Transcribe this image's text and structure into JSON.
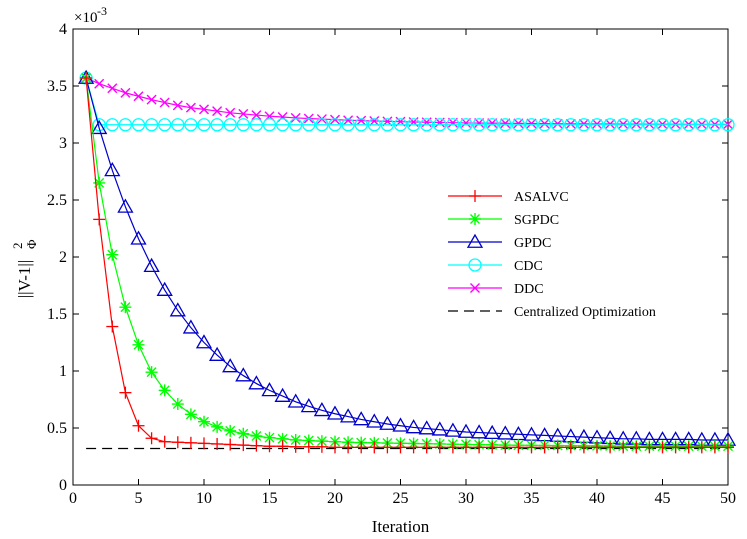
{
  "chart_data": {
    "type": "line",
    "title": "",
    "xlabel": "Iteration",
    "ylabel_main": "||V-1||",
    "ylabel_sup": "2",
    "ylabel_sub": "Φ",
    "y_exponent_label_base": "×10",
    "y_exponent_label_power": "-3",
    "xlim": [
      0,
      50
    ],
    "ylim": [
      0,
      4
    ],
    "xticks": [
      0,
      5,
      10,
      15,
      20,
      25,
      30,
      35,
      40,
      45,
      50
    ],
    "yticks": [
      0,
      0.5,
      1,
      1.5,
      2,
      2.5,
      3,
      3.5,
      4
    ],
    "grid": false,
    "legend_position": "center-right",
    "x": [
      1,
      2,
      3,
      4,
      5,
      6,
      7,
      8,
      9,
      10,
      11,
      12,
      13,
      14,
      15,
      16,
      17,
      18,
      19,
      20,
      21,
      22,
      23,
      24,
      25,
      26,
      27,
      28,
      29,
      30,
      31,
      32,
      33,
      34,
      35,
      36,
      37,
      38,
      39,
      40,
      41,
      42,
      43,
      44,
      45,
      46,
      47,
      48,
      49,
      50
    ],
    "series": [
      {
        "name": "ASALVC",
        "color": "#ff0000",
        "marker": "plus",
        "values": [
          3.57,
          2.33,
          1.39,
          0.81,
          0.52,
          0.41,
          0.38,
          0.375,
          0.37,
          0.365,
          0.36,
          0.355,
          0.35,
          0.345,
          0.34,
          0.34,
          0.335,
          0.335,
          0.335,
          0.33,
          0.33,
          0.33,
          0.33,
          0.33,
          0.33,
          0.33,
          0.33,
          0.33,
          0.33,
          0.33,
          0.33,
          0.33,
          0.33,
          0.33,
          0.33,
          0.33,
          0.33,
          0.33,
          0.33,
          0.33,
          0.33,
          0.33,
          0.33,
          0.33,
          0.33,
          0.33,
          0.33,
          0.33,
          0.33,
          0.33
        ]
      },
      {
        "name": "SGPDC",
        "color": "#00ff00",
        "marker": "star",
        "values": [
          3.57,
          2.65,
          2.02,
          1.56,
          1.23,
          0.99,
          0.83,
          0.71,
          0.62,
          0.555,
          0.51,
          0.475,
          0.45,
          0.43,
          0.415,
          0.405,
          0.395,
          0.39,
          0.385,
          0.38,
          0.375,
          0.372,
          0.37,
          0.368,
          0.366,
          0.364,
          0.362,
          0.36,
          0.358,
          0.356,
          0.354,
          0.352,
          0.35,
          0.349,
          0.348,
          0.347,
          0.346,
          0.345,
          0.344,
          0.343,
          0.342,
          0.341,
          0.34,
          0.34,
          0.34,
          0.34,
          0.34,
          0.34,
          0.34,
          0.34
        ]
      },
      {
        "name": "GPDC",
        "color": "#0000cc",
        "marker": "triangle",
        "values": [
          3.57,
          3.13,
          2.76,
          2.44,
          2.16,
          1.92,
          1.71,
          1.53,
          1.38,
          1.25,
          1.14,
          1.04,
          0.96,
          0.89,
          0.83,
          0.78,
          0.73,
          0.69,
          0.655,
          0.625,
          0.6,
          0.575,
          0.555,
          0.535,
          0.52,
          0.505,
          0.495,
          0.485,
          0.475,
          0.465,
          0.46,
          0.455,
          0.45,
          0.445,
          0.44,
          0.435,
          0.43,
          0.425,
          0.42,
          0.415,
          0.41,
          0.405,
          0.405,
          0.4,
          0.4,
          0.4,
          0.4,
          0.395,
          0.395,
          0.395
        ]
      },
      {
        "name": "CDC",
        "color": "#00ffff",
        "marker": "circle",
        "values": [
          3.57,
          3.16,
          3.16,
          3.16,
          3.16,
          3.16,
          3.16,
          3.16,
          3.16,
          3.16,
          3.16,
          3.16,
          3.16,
          3.16,
          3.16,
          3.16,
          3.16,
          3.16,
          3.16,
          3.16,
          3.16,
          3.16,
          3.16,
          3.16,
          3.16,
          3.16,
          3.16,
          3.16,
          3.16,
          3.16,
          3.16,
          3.16,
          3.16,
          3.16,
          3.16,
          3.16,
          3.16,
          3.16,
          3.16,
          3.16,
          3.16,
          3.16,
          3.16,
          3.16,
          3.16,
          3.16,
          3.16,
          3.16,
          3.16,
          3.16
        ]
      },
      {
        "name": "DDC",
        "color": "#ff00ff",
        "marker": "x",
        "values": [
          3.57,
          3.52,
          3.48,
          3.44,
          3.41,
          3.38,
          3.355,
          3.33,
          3.31,
          3.295,
          3.28,
          3.265,
          3.255,
          3.245,
          3.235,
          3.228,
          3.22,
          3.215,
          3.21,
          3.205,
          3.2,
          3.196,
          3.193,
          3.19,
          3.187,
          3.184,
          3.182,
          3.18,
          3.178,
          3.176,
          3.175,
          3.174,
          3.173,
          3.172,
          3.171,
          3.17,
          3.169,
          3.168,
          3.168,
          3.167,
          3.167,
          3.166,
          3.166,
          3.165,
          3.165,
          3.165,
          3.164,
          3.164,
          3.164,
          3.164
        ]
      },
      {
        "name": "Centralized Optimization",
        "color": "#000000",
        "marker": "none",
        "dashed": true,
        "values": [
          0.32,
          0.32,
          0.32,
          0.32,
          0.32,
          0.32,
          0.32,
          0.32,
          0.32,
          0.32,
          0.32,
          0.32,
          0.32,
          0.32,
          0.32,
          0.32,
          0.32,
          0.32,
          0.32,
          0.32,
          0.32,
          0.32,
          0.32,
          0.32,
          0.32,
          0.32,
          0.32,
          0.32,
          0.32,
          0.32,
          0.32,
          0.32,
          0.32,
          0.32,
          0.32,
          0.32,
          0.32,
          0.32,
          0.32,
          0.32,
          0.32,
          0.32,
          0.32,
          0.32,
          0.32,
          0.32,
          0.32,
          0.32,
          0.32,
          0.32
        ]
      }
    ]
  }
}
